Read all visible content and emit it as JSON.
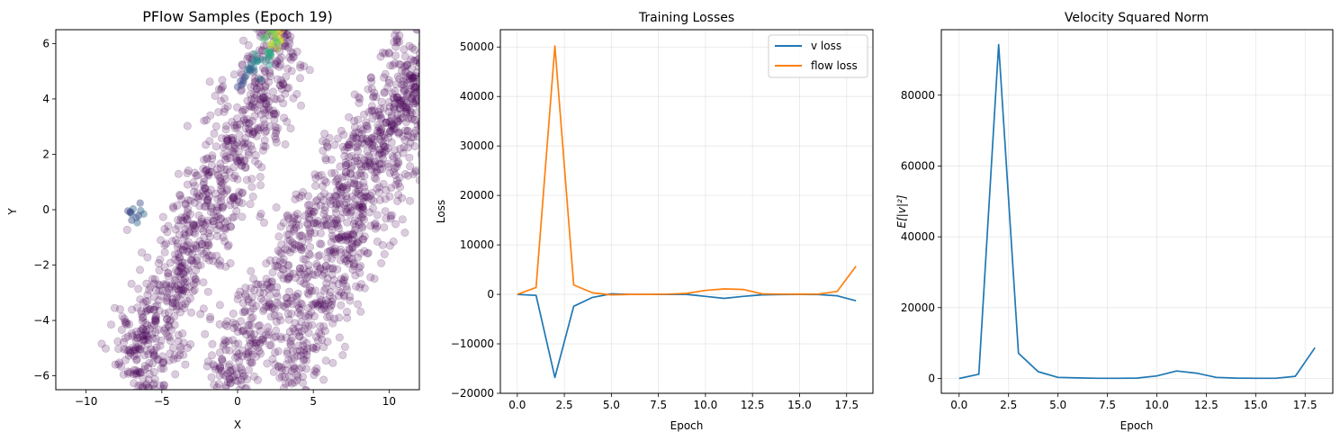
{
  "figure": {
    "panels": [
      {
        "title": "PFlow Samples (Epoch 19)"
      },
      {
        "title": "Training Losses"
      },
      {
        "title": "Velocity Squared Norm"
      }
    ]
  },
  "chart_data": [
    {
      "type": "scatter",
      "title": "PFlow Samples (Epoch 19)",
      "xlabel": "X",
      "ylabel": "Y",
      "xlim": [
        -12,
        12
      ],
      "ylim": [
        -6.5,
        6.5
      ],
      "xticks": [
        -10,
        -5,
        0,
        5,
        10
      ],
      "yticks": [
        -6,
        -4,
        -2,
        0,
        2,
        4,
        6
      ],
      "grid": false,
      "colormap": "viridis",
      "marker_alpha": 0.2,
      "point_color": "#440154",
      "structure": [
        {
          "name": "",
          "from": [
            -7,
            -6.5
          ],
          "to": [
            3.2,
            6.5
          ],
          "width": 2.4,
          "density": "high"
        },
        {
          "name": "",
          "from": [
            -1.5,
            -6.5
          ],
          "to": [
            12,
            5.5
          ],
          "width": 2.0,
          "density": "medium"
        },
        {
          "name": "",
          "from": [
            3,
            -6.5
          ],
          "to": [
            14,
            6.5
          ],
          "width": 2.2,
          "density": "medium"
        }
      ],
      "bright_points": [
        {
          "x": 2.8,
          "y": 6.2,
          "color": "#fde725"
        },
        {
          "x": 2.5,
          "y": 6.0,
          "color": "#b5de2b"
        },
        {
          "x": 2.2,
          "y": 6.3,
          "color": "#6ece58"
        },
        {
          "x": 2.0,
          "y": 5.8,
          "color": "#35b779"
        },
        {
          "x": 1.6,
          "y": 5.5,
          "color": "#1f9e89"
        },
        {
          "x": 1.2,
          "y": 5.2,
          "color": "#26828e"
        },
        {
          "x": 0.8,
          "y": 4.9,
          "color": "#31688e"
        },
        {
          "x": 0.3,
          "y": 4.6,
          "color": "#3e4989"
        },
        {
          "x": -6.8,
          "y": -0.3,
          "color": "#31688e"
        },
        {
          "x": -6.9,
          "y": -0.1,
          "color": "#3e4989"
        }
      ]
    },
    {
      "type": "line",
      "title": "Training Losses",
      "xlabel": "Epoch",
      "ylabel": "Loss",
      "xlim": [
        -0.9,
        18.9
      ],
      "ylim": [
        -20000,
        53500
      ],
      "xticks": [
        0.0,
        2.5,
        5.0,
        7.5,
        10.0,
        12.5,
        15.0,
        17.5
      ],
      "xtick_labels": [
        "0.0",
        "2.5",
        "5.0",
        "7.5",
        "10.0",
        "12.5",
        "15.0",
        "17.5"
      ],
      "yticks": [
        -20000,
        -10000,
        0,
        10000,
        20000,
        30000,
        40000,
        50000
      ],
      "ytick_labels": [
        "−20000",
        "−10000",
        "0",
        "10000",
        "20000",
        "30000",
        "40000",
        "50000"
      ],
      "grid": true,
      "legend": "top-right",
      "x": [
        0,
        1,
        2,
        3,
        4,
        5,
        6,
        7,
        8,
        9,
        10,
        11,
        12,
        13,
        14,
        15,
        16,
        17,
        18
      ],
      "series": [
        {
          "name": "v loss",
          "color": "#1f77b4",
          "values": [
            0,
            -200,
            -16800,
            -2400,
            -600,
            100,
            0,
            0,
            0,
            0,
            -400,
            -800,
            -400,
            -100,
            -50,
            -30,
            -50,
            -300,
            -1300
          ]
        },
        {
          "name": "flow loss",
          "color": "#ff7f0e",
          "values": [
            0,
            1400,
            50200,
            1900,
            300,
            -100,
            0,
            0,
            50,
            200,
            800,
            1100,
            1000,
            100,
            50,
            30,
            50,
            600,
            5700
          ]
        }
      ]
    },
    {
      "type": "line",
      "title": "Velocity Squared Norm",
      "xlabel": "Epoch",
      "ylabel": "E[|v|²]",
      "xlim": [
        -0.9,
        18.9
      ],
      "ylim": [
        -4200,
        98500
      ],
      "xticks": [
        0.0,
        2.5,
        5.0,
        7.5,
        10.0,
        12.5,
        15.0,
        17.5
      ],
      "xtick_labels": [
        "0.0",
        "2.5",
        "5.0",
        "7.5",
        "10.0",
        "12.5",
        "15.0",
        "17.5"
      ],
      "yticks": [
        0,
        20000,
        40000,
        60000,
        80000
      ],
      "ytick_labels": [
        "0",
        "20000",
        "40000",
        "60000",
        "80000"
      ],
      "grid": true,
      "x": [
        0,
        1,
        2,
        3,
        4,
        5,
        6,
        7,
        8,
        9,
        10,
        11,
        12,
        13,
        14,
        15,
        16,
        17,
        18
      ],
      "series": [
        {
          "name": "",
          "color": "#1f77b4",
          "values": [
            0,
            1200,
            94300,
            7100,
            1900,
            300,
            150,
            50,
            50,
            100,
            700,
            2100,
            1500,
            300,
            100,
            50,
            50,
            600,
            8700
          ]
        }
      ]
    }
  ]
}
